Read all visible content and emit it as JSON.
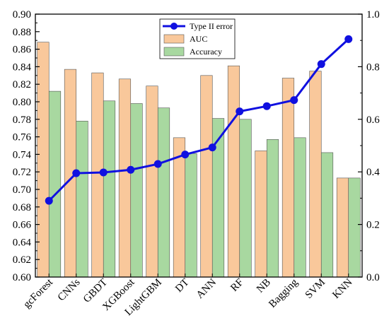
{
  "chart_data": {
    "type": "bar",
    "categories": [
      "gcForest",
      "CNNs",
      "GBDT",
      "XGBoost",
      "LightGBM",
      "DT",
      "ANN",
      "RF",
      "NB",
      "Bagging",
      "SVM",
      "KNN"
    ],
    "series": [
      {
        "name": "AUC",
        "axis": "left",
        "kind": "bar",
        "color": "#F9C89B",
        "values": [
          0.868,
          0.837,
          0.833,
          0.826,
          0.818,
          0.759,
          0.83,
          0.841,
          0.744,
          0.827,
          0.835,
          0.713
        ]
      },
      {
        "name": "Accuracy",
        "axis": "left",
        "kind": "bar",
        "color": "#A8D8A0",
        "values": [
          0.812,
          0.778,
          0.801,
          0.798,
          0.793,
          0.741,
          0.781,
          0.78,
          0.757,
          0.759,
          0.742,
          0.713
        ]
      },
      {
        "name": "Type II error",
        "axis": "right",
        "kind": "line",
        "color": "#1010E0",
        "values": [
          0.29,
          0.395,
          0.398,
          0.408,
          0.43,
          0.466,
          0.493,
          0.63,
          0.65,
          0.673,
          0.81,
          0.905
        ]
      }
    ],
    "left_axis": {
      "ylim": [
        0.6,
        0.9
      ],
      "ticks": [
        "0.60",
        "0.62",
        "0.64",
        "0.66",
        "0.68",
        "0.70",
        "0.72",
        "0.74",
        "0.76",
        "0.78",
        "0.80",
        "0.82",
        "0.84",
        "0.86",
        "0.88",
        "0.90"
      ]
    },
    "right_axis": {
      "ylim": [
        0.0,
        1.0
      ],
      "ticks": [
        "0.0",
        "0.2",
        "0.4",
        "0.6",
        "0.8",
        "1.0"
      ]
    },
    "legend": {
      "placement": "top-center",
      "entries": [
        "Type II error",
        "AUC",
        "Accuracy"
      ]
    },
    "grid": false
  }
}
